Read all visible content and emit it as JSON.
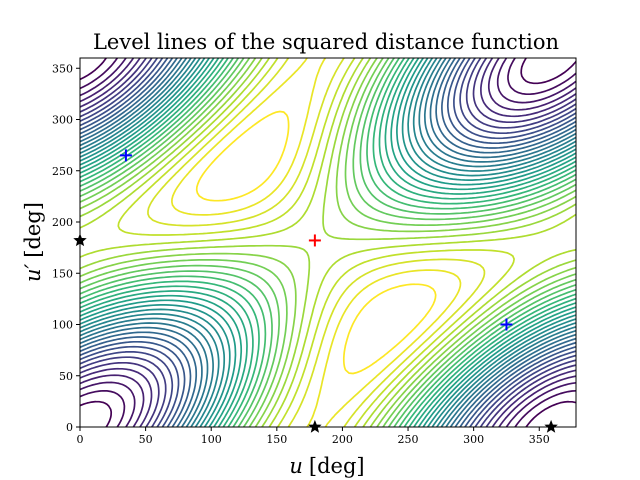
{
  "chart_data": {
    "type": "contour",
    "title": "Level lines of the squared distance function",
    "xlabel": "u [deg]",
    "ylabel": "u′ [deg]",
    "xlabel_var": "u",
    "xlabel_unit": "[deg]",
    "ylabel_var": "u′",
    "ylabel_unit": "[deg]",
    "xlim": [
      0,
      378
    ],
    "ylim": [
      0,
      360
    ],
    "xticks": [
      0,
      50,
      100,
      150,
      200,
      250,
      300,
      350
    ],
    "yticks": [
      0,
      50,
      100,
      150,
      200,
      250,
      300,
      350
    ],
    "grid": false,
    "colormap": "viridis",
    "markers": [
      {
        "kind": "plus",
        "color": "#ff0000",
        "x": 179,
        "y": 182
      },
      {
        "kind": "plus",
        "color": "#0000ff",
        "x": 35,
        "y": 265
      },
      {
        "kind": "plus",
        "color": "#0000ff",
        "x": 325,
        "y": 100
      },
      {
        "kind": "star",
        "color": "#000000",
        "x": 0,
        "y": 182
      },
      {
        "kind": "star",
        "color": "#000000",
        "x": 179,
        "y": 0
      },
      {
        "kind": "star",
        "color": "#000000",
        "x": 359,
        "y": 0
      }
    ]
  }
}
